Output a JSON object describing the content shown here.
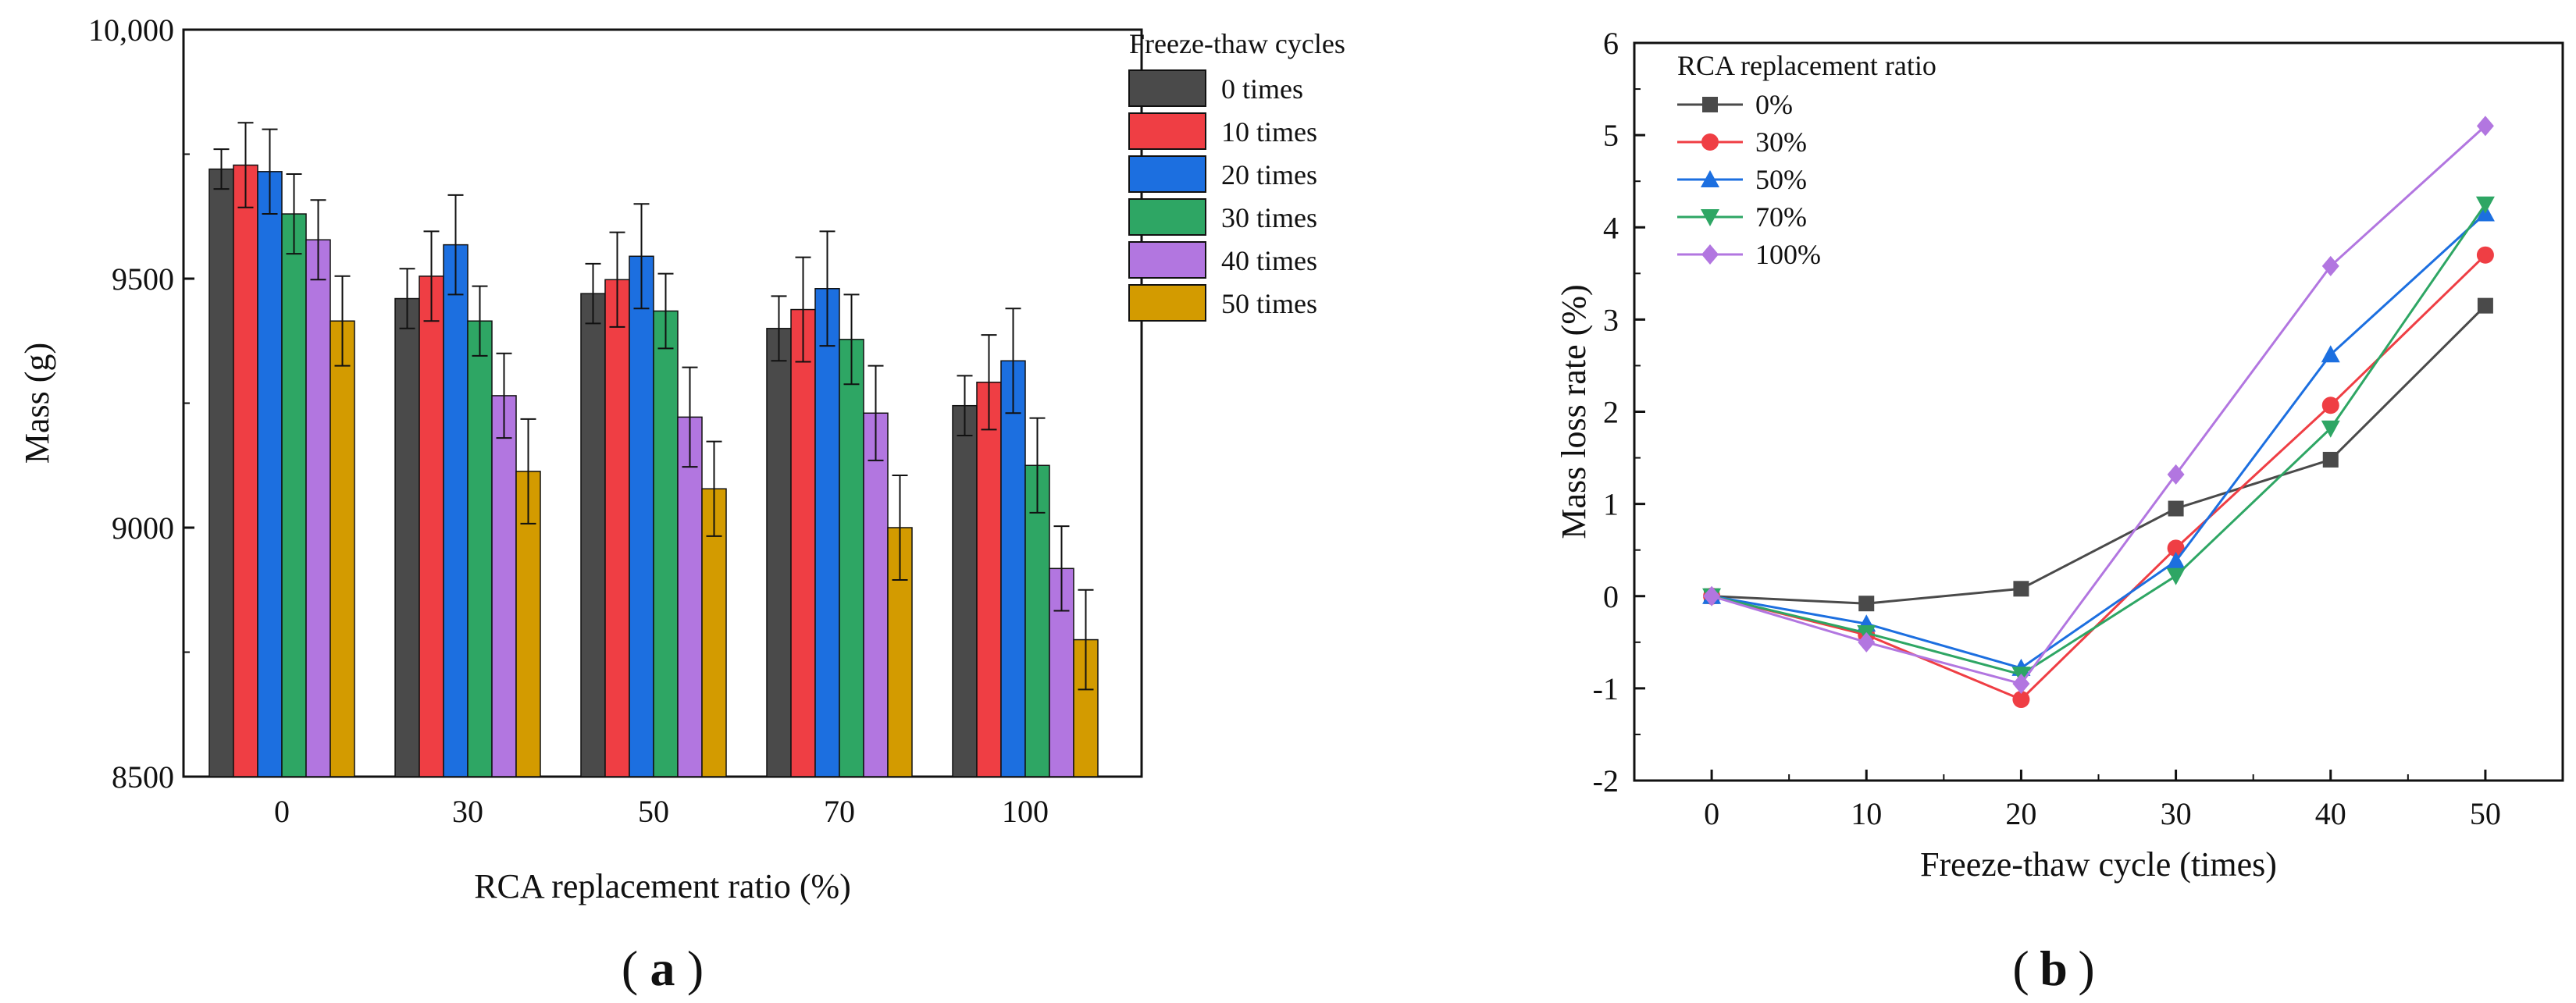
{
  "chart_data": [
    {
      "type": "bar",
      "panel_label": "a",
      "title": "",
      "xlabel": "RCA replacement ratio (%)",
      "ylabel": "Mass (g)",
      "categories": [
        "0",
        "30",
        "50",
        "70",
        "100"
      ],
      "ylim": [
        8500,
        10000
      ],
      "y_ticks": [
        "8500",
        "9000",
        "9500",
        "10,000"
      ],
      "legend_title": "Freeze-thaw cycles",
      "legend_position": "top-right",
      "series": [
        {
          "name": "0 times",
          "color": "#4a4a4a",
          "values": [
            9720,
            9460,
            9470,
            9400,
            9245
          ],
          "errors": [
            40,
            60,
            60,
            65,
            60
          ]
        },
        {
          "name": "10 times",
          "color": "#ef3e44",
          "values": [
            9728,
            9505,
            9498,
            9438,
            9292
          ],
          "errors": [
            85,
            90,
            95,
            105,
            95
          ]
        },
        {
          "name": "20 times",
          "color": "#1c6fe0",
          "values": [
            9715,
            9568,
            9545,
            9480,
            9335
          ],
          "errors": [
            85,
            100,
            105,
            115,
            105
          ]
        },
        {
          "name": "30 times",
          "color": "#2ea664",
          "values": [
            9630,
            9415,
            9435,
            9378,
            9125
          ],
          "errors": [
            80,
            70,
            75,
            90,
            95
          ]
        },
        {
          "name": "40 times",
          "color": "#b276e0",
          "values": [
            9578,
            9265,
            9222,
            9230,
            8918
          ],
          "errors": [
            80,
            85,
            100,
            95,
            85
          ]
        },
        {
          "name": "50 times",
          "color": "#d39b00",
          "values": [
            9415,
            9113,
            9078,
            9000,
            8775
          ],
          "errors": [
            90,
            105,
            95,
            105,
            100
          ]
        }
      ]
    },
    {
      "type": "line",
      "panel_label": "b",
      "title": "",
      "xlabel": "Freeze-thaw cycle (times)",
      "ylabel": "Mass loss rate (%)",
      "x": [
        0,
        10,
        20,
        30,
        40,
        50
      ],
      "xlim": [
        -5,
        55
      ],
      "ylim": [
        -2,
        6
      ],
      "x_ticks": [
        "0",
        "10",
        "20",
        "30",
        "40",
        "50"
      ],
      "y_ticks": [
        "-2",
        "-1",
        "0",
        "1",
        "2",
        "3",
        "4",
        "5",
        "6"
      ],
      "legend_title": "RCA replacement ratio",
      "legend_position": "top-left",
      "series": [
        {
          "name": "0%",
          "color": "#4a4a4a",
          "marker": "square",
          "values": [
            0,
            -0.08,
            0.08,
            0.95,
            1.48,
            3.15
          ]
        },
        {
          "name": "30%",
          "color": "#ef3e44",
          "marker": "circle",
          "values": [
            0,
            -0.42,
            -1.12,
            0.52,
            2.07,
            3.7
          ]
        },
        {
          "name": "50%",
          "color": "#1c6fe0",
          "marker": "triangle-up",
          "values": [
            0,
            -0.3,
            -0.78,
            0.38,
            2.62,
            4.15
          ]
        },
        {
          "name": "70%",
          "color": "#2ea664",
          "marker": "triangle-down",
          "values": [
            0,
            -0.4,
            -0.85,
            0.22,
            1.82,
            4.25
          ]
        },
        {
          "name": "100%",
          "color": "#b276e0",
          "marker": "diamond",
          "values": [
            0,
            -0.5,
            -0.95,
            1.32,
            3.58,
            5.1
          ]
        }
      ]
    }
  ]
}
